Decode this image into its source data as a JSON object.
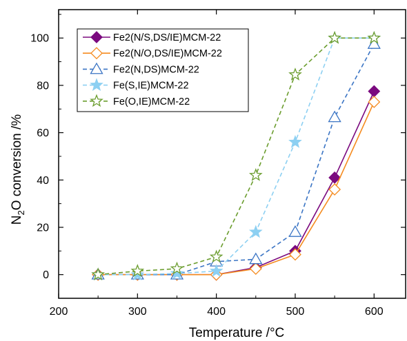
{
  "chart_data": {
    "type": "line",
    "xlabel": "Temperature /°C",
    "ylabel_main": "N",
    "ylabel_sub": "2",
    "ylabel_rest": "O conversion /%",
    "xlim": [
      200,
      640
    ],
    "ylim": [
      -10,
      112
    ],
    "xticks": [
      200,
      300,
      400,
      500,
      600
    ],
    "yticks": [
      0,
      20,
      40,
      60,
      80,
      100
    ],
    "grid": false,
    "legend_position": "top-left",
    "x": [
      250,
      300,
      350,
      400,
      450,
      500,
      550,
      600
    ],
    "series": [
      {
        "name": "Fe2(N/S,DS/IE)MCM-22",
        "color": "#7b0a7f",
        "dash": "solid",
        "marker": "diamond",
        "filled": true,
        "values": [
          0,
          0,
          0,
          0,
          3,
          10,
          41,
          77.5
        ]
      },
      {
        "name": "Fe2(N/O,DS/IE)MCM-22",
        "color": "#f58b1f",
        "dash": "solid",
        "marker": "diamond",
        "filled": false,
        "values": [
          0,
          0,
          0,
          0,
          2.5,
          8.5,
          36,
          73
        ]
      },
      {
        "name": "Fe2(N,DS)MCM-22",
        "color": "#3a74c4",
        "dash": "dashed",
        "marker": "triangle",
        "filled": false,
        "values": [
          0,
          0,
          0,
          5.5,
          6.5,
          18,
          66.5,
          97.5
        ]
      },
      {
        "name": "Fe(S,IE)MCM-22",
        "color": "#8dd0f2",
        "dash": "dashed",
        "marker": "star",
        "filled": true,
        "values": [
          0,
          0,
          0.5,
          1.5,
          18,
          56,
          100,
          100
        ]
      },
      {
        "name": "Fe(O,IE)MCM-22",
        "color": "#6b9d2e",
        "dash": "dashed",
        "marker": "star",
        "filled": false,
        "values": [
          0,
          1.5,
          2.5,
          7.5,
          42,
          84.5,
          100,
          100
        ]
      }
    ]
  }
}
